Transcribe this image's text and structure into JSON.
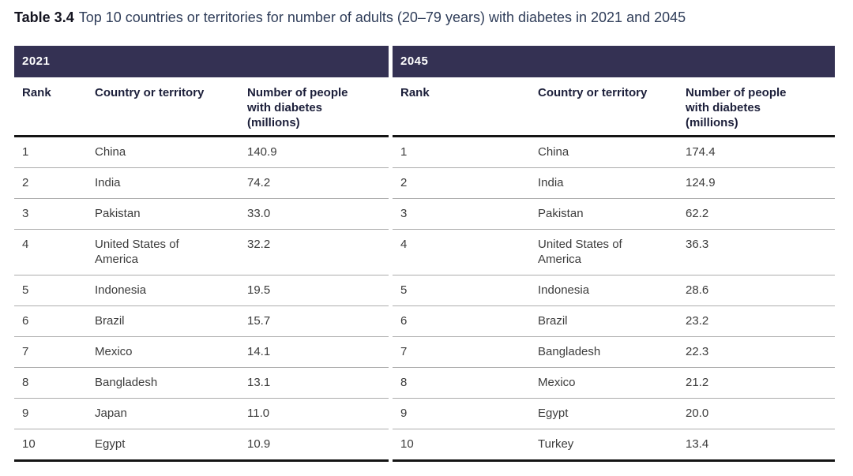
{
  "title": {
    "label": "Table 3.4",
    "text": "Top 10 countries or territories for number of adults (20–79 years) with diabetes in 2021 and 2045"
  },
  "columns": {
    "rank": "Rank",
    "country": "Country or territory",
    "number": "Number of people with diabetes (millions)"
  },
  "sections": [
    {
      "year": "2021",
      "rows": [
        {
          "rank": "1",
          "country": "China",
          "value": "140.9"
        },
        {
          "rank": "2",
          "country": "India",
          "value": "74.2"
        },
        {
          "rank": "3",
          "country": "Pakistan",
          "value": "33.0"
        },
        {
          "rank": "4",
          "country": "United States of America",
          "value": "32.2"
        },
        {
          "rank": "5",
          "country": "Indonesia",
          "value": "19.5"
        },
        {
          "rank": "6",
          "country": "Brazil",
          "value": "15.7"
        },
        {
          "rank": "7",
          "country": "Mexico",
          "value": "14.1"
        },
        {
          "rank": "8",
          "country": "Bangladesh",
          "value": "13.1"
        },
        {
          "rank": "9",
          "country": "Japan",
          "value": "11.0"
        },
        {
          "rank": "10",
          "country": "Egypt",
          "value": "10.9"
        }
      ]
    },
    {
      "year": "2045",
      "rows": [
        {
          "rank": "1",
          "country": "China",
          "value": "174.4"
        },
        {
          "rank": "2",
          "country": "India",
          "value": "124.9"
        },
        {
          "rank": "3",
          "country": "Pakistan",
          "value": "62.2"
        },
        {
          "rank": "4",
          "country": "United States of America",
          "value": "36.3"
        },
        {
          "rank": "5",
          "country": "Indonesia",
          "value": "28.6"
        },
        {
          "rank": "6",
          "country": "Brazil",
          "value": "23.2"
        },
        {
          "rank": "7",
          "country": "Bangladesh",
          "value": "22.3"
        },
        {
          "rank": "8",
          "country": "Mexico",
          "value": "21.2"
        },
        {
          "rank": "9",
          "country": "Egypt",
          "value": "20.0"
        },
        {
          "rank": "10",
          "country": "Turkey",
          "value": "13.4"
        }
      ]
    }
  ],
  "colors": {
    "header_bar": "#343153",
    "title_label": "#141420",
    "title_text": "#2f3d59",
    "column_header_text": "#1c1f3a",
    "body_text": "#3c3c3c",
    "thin_rule": "#adadad",
    "thick_rule": "#141414"
  }
}
